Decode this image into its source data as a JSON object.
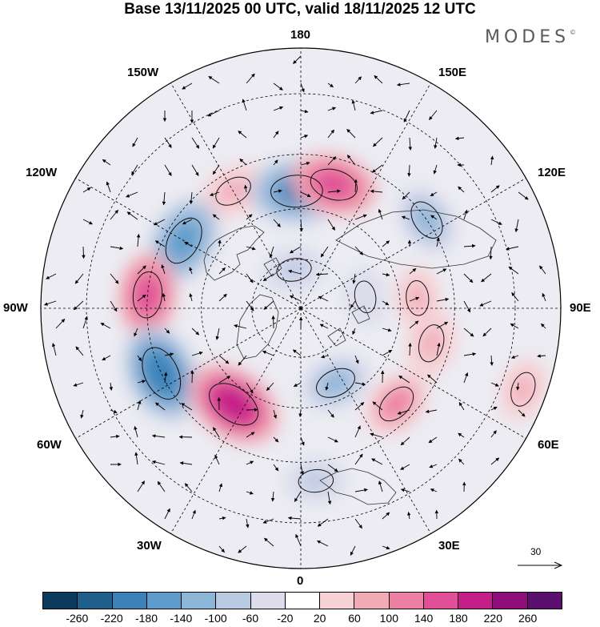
{
  "title": "Base 13/11/2025 00 UTC, valid 18/11/2025 12 UTC",
  "brand": "MODES",
  "brand_mark": "©",
  "longitude_labels": {
    "lon_180": "180",
    "lon_150e": "150E",
    "lon_120e": "120E",
    "lon_90e": "90E",
    "lon_60e": "60E",
    "lon_30e": "30E",
    "lon_0": "0",
    "lon_30w": "30W",
    "lon_60w": "60W",
    "lon_90w": "90W",
    "lon_120w": "120W",
    "lon_150w": "150W"
  },
  "vector_scale": {
    "value": "30"
  },
  "colorbar": {
    "colors": [
      "#0d3b5e",
      "#1e5f8c",
      "#3b82b8",
      "#5e9ccb",
      "#8db5d8",
      "#b9c9e2",
      "#dcdced",
      "#ffffff",
      "#f6d2d6",
      "#f1aab6",
      "#ec7fa2",
      "#e04f97",
      "#c41f89",
      "#8e0f7a",
      "#5b0f6e"
    ],
    "tick_labels": [
      "-260",
      "-220",
      "-180",
      "-140",
      "-100",
      "-60",
      "-20",
      "20",
      "60",
      "100",
      "140",
      "180",
      "220",
      "260"
    ]
  },
  "anomaly_centers": [
    {
      "lon": -150,
      "lat": 50,
      "value": 80
    },
    {
      "lon": -178,
      "lat": 55,
      "value": -180
    },
    {
      "lon": 165,
      "lat": 52,
      "value": 150
    },
    {
      "lon": 125,
      "lat": 45,
      "value": -100
    },
    {
      "lon": 95,
      "lat": 55,
      "value": 60
    },
    {
      "lon": 75,
      "lat": 50,
      "value": 80
    },
    {
      "lon": -120,
      "lat": 50,
      "value": -160
    },
    {
      "lon": -95,
      "lat": 45,
      "value": 140
    },
    {
      "lon": -65,
      "lat": 45,
      "value": -200
    },
    {
      "lon": -35,
      "lat": 55,
      "value": 200
    },
    {
      "lon": 25,
      "lat": 65,
      "value": -100
    },
    {
      "lon": 45,
      "lat": 50,
      "value": 100
    },
    {
      "lon": 70,
      "lat": 25,
      "value": 60
    },
    {
      "lon": 5,
      "lat": 40,
      "value": -60
    },
    {
      "lon": -170,
      "lat": 78,
      "value": -60
    },
    {
      "lon": 100,
      "lat": 70,
      "value": -40
    }
  ]
}
